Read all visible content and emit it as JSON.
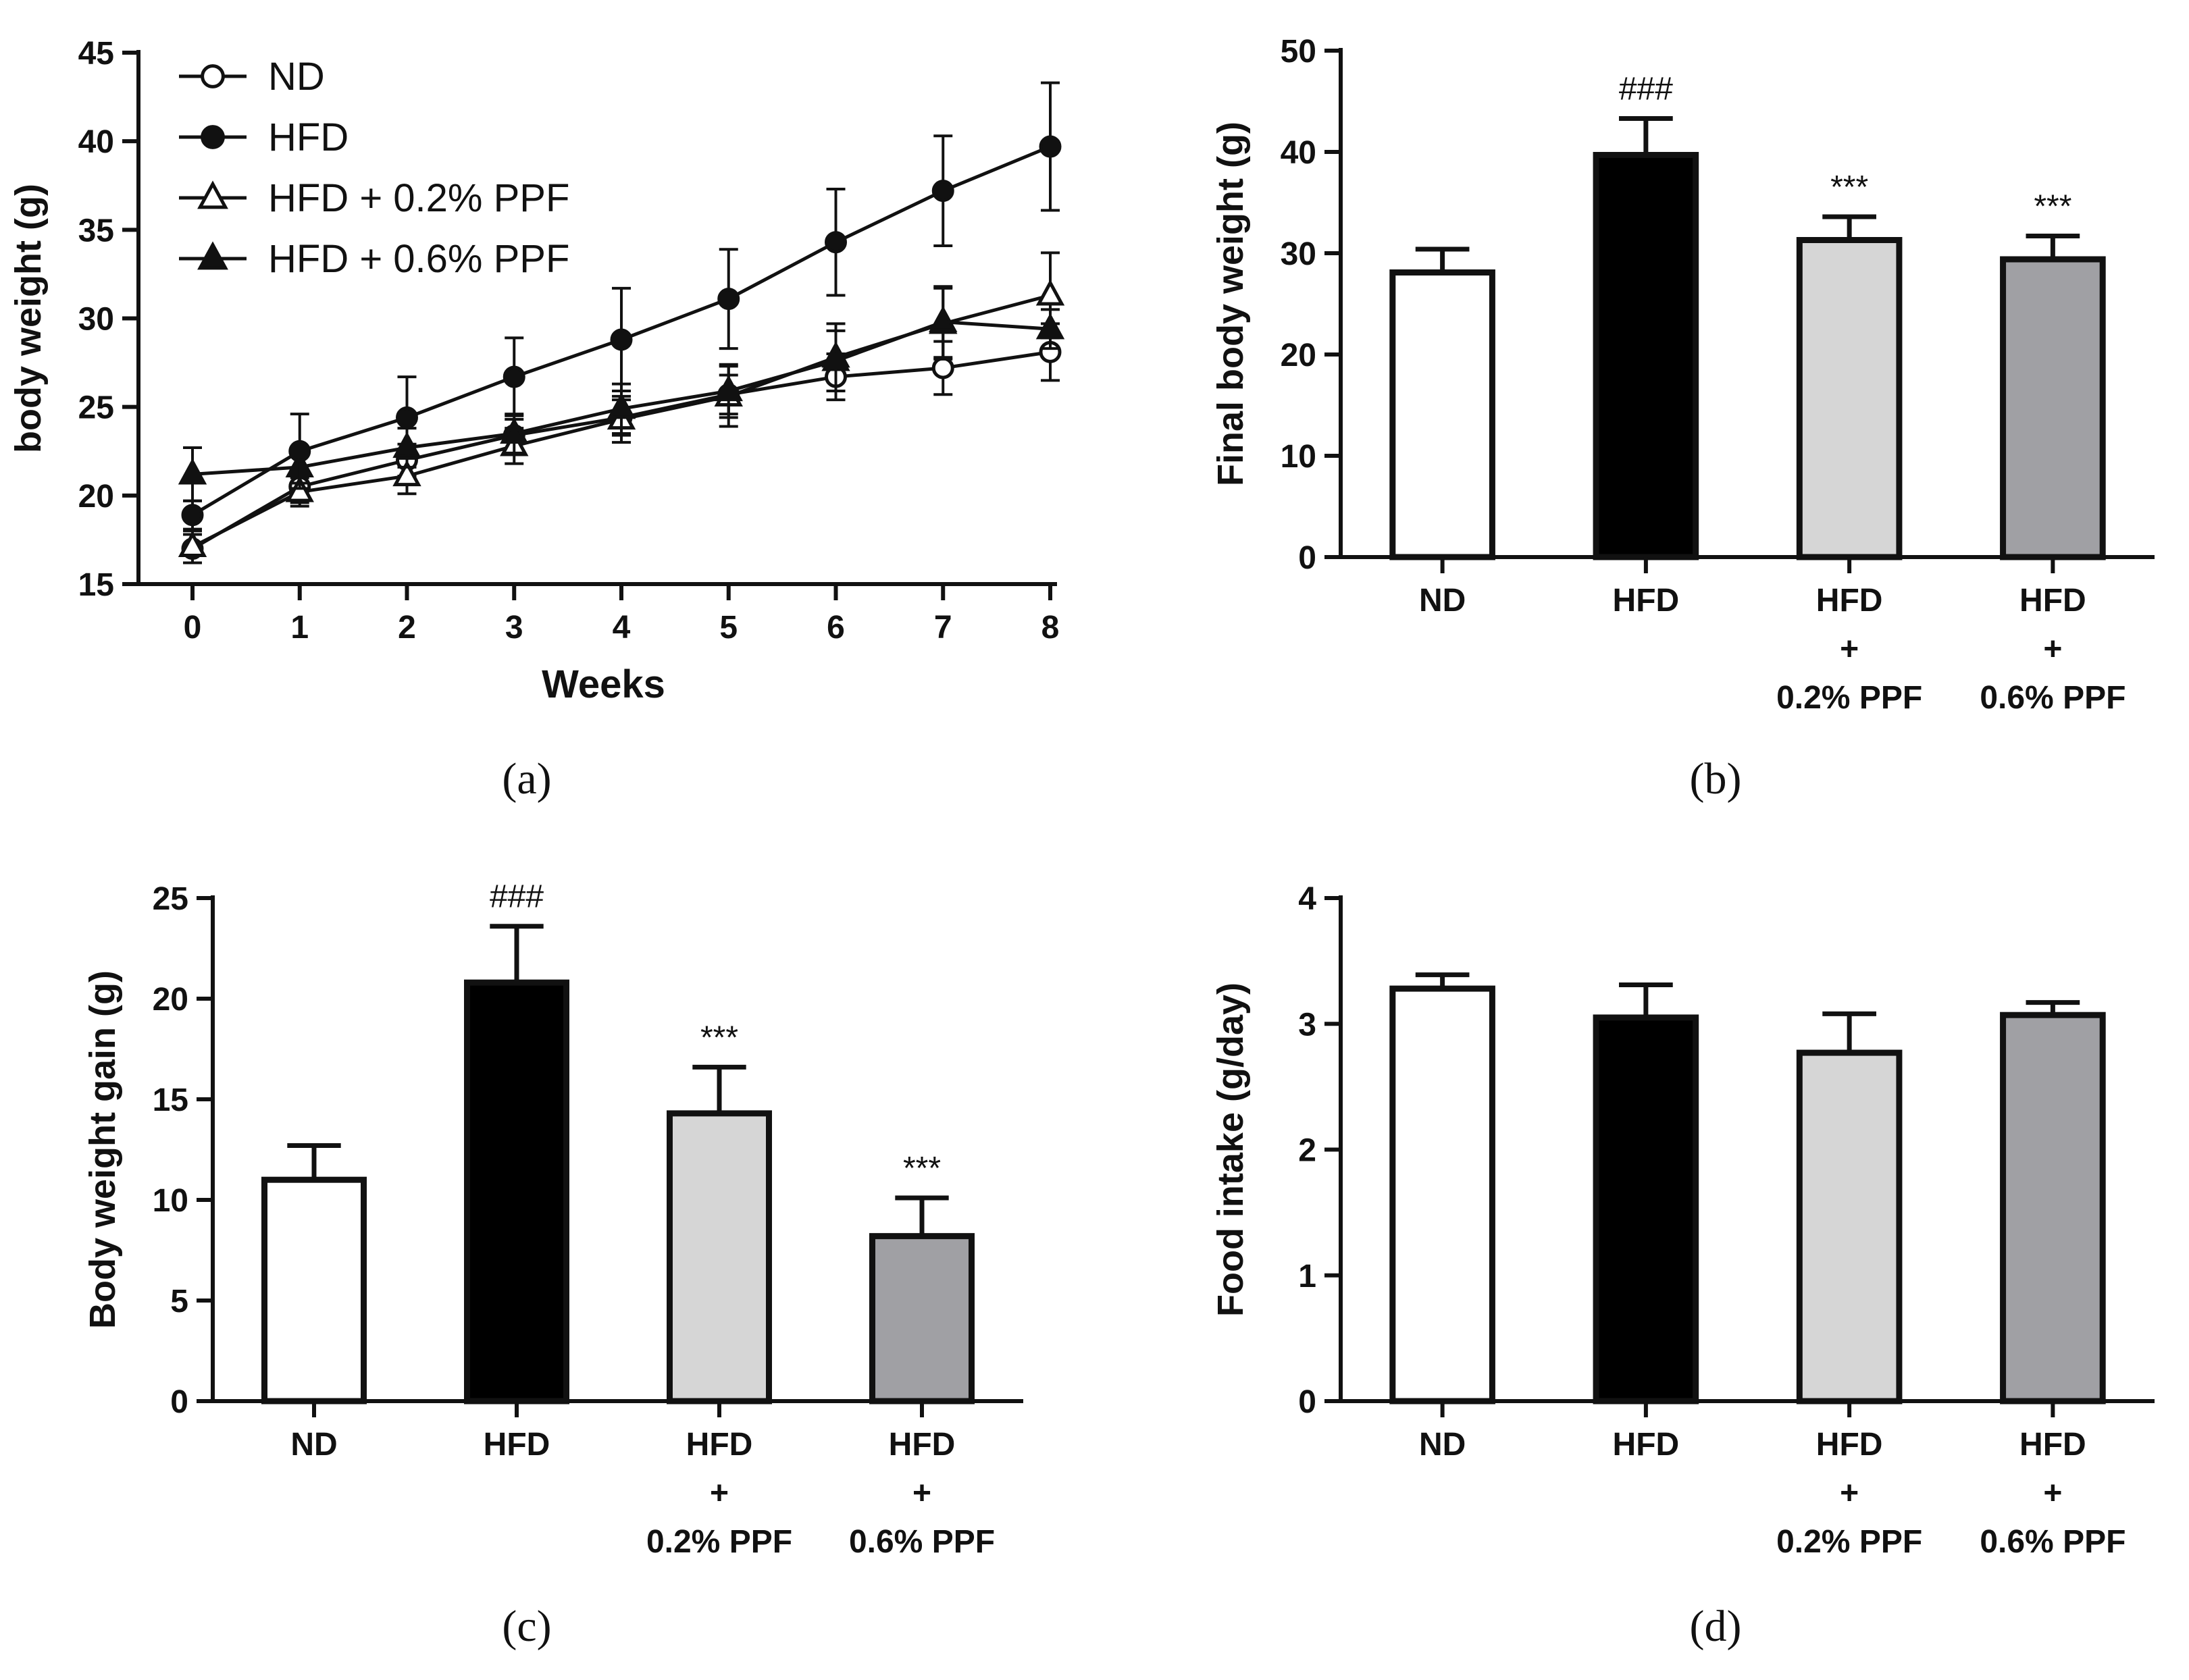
{
  "chart_data": [
    {
      "panel": "(a)",
      "type": "line",
      "xlabel": "Weeks",
      "ylabel": "body weight (g)",
      "x": [
        0,
        1,
        2,
        3,
        4,
        5,
        6,
        7,
        8
      ],
      "x_ticks": [
        "0",
        "1",
        "2",
        "3",
        "4",
        "5",
        "6",
        "7",
        "8"
      ],
      "ylim": [
        15,
        45
      ],
      "y_ticks": [
        "15",
        "20",
        "25",
        "30",
        "35",
        "40",
        "45"
      ],
      "legend_position": "top-left",
      "series": [
        {
          "name": "ND",
          "marker": "circle-open",
          "values": [
            17.0,
            20.5,
            22.0,
            23.4,
            24.4,
            25.7,
            26.7,
            27.2,
            28.1
          ],
          "errors": [
            0.8,
            0.9,
            0.9,
            0.9,
            1.0,
            1.1,
            1.3,
            1.5,
            1.6
          ]
        },
        {
          "name": "HFD",
          "marker": "circle-filled",
          "values": [
            18.9,
            22.5,
            24.4,
            26.7,
            28.8,
            31.1,
            34.3,
            37.2,
            39.7
          ],
          "errors": [
            0.8,
            2.1,
            2.3,
            2.2,
            2.9,
            2.8,
            3.0,
            3.1,
            3.6
          ]
        },
        {
          "name": "HFD + 0.2% PPF",
          "marker": "triangle-open",
          "values": [
            17.1,
            20.2,
            21.1,
            22.8,
            24.3,
            25.6,
            27.8,
            29.7,
            31.3
          ],
          "errors": [
            0.9,
            0.8,
            1.0,
            1.0,
            1.3,
            1.7,
            1.9,
            2.0,
            2.4
          ]
        },
        {
          "name": "HFD + 0.6% PPF",
          "marker": "triangle-filled",
          "values": [
            21.2,
            21.6,
            22.7,
            23.5,
            24.9,
            25.9,
            27.6,
            29.8,
            29.4
          ],
          "errors": [
            1.5,
            0.9,
            1.1,
            1.1,
            1.4,
            1.5,
            1.7,
            2.0,
            1.1
          ]
        }
      ]
    },
    {
      "panel": "(b)",
      "type": "bar",
      "ylabel": "Final body weight (g)",
      "categories": [
        [
          "ND"
        ],
        [
          "HFD"
        ],
        [
          "HFD",
          "+",
          "0.2% PPF"
        ],
        [
          "HFD",
          "+",
          "0.6% PPF"
        ]
      ],
      "values": [
        28.1,
        39.7,
        31.3,
        29.4
      ],
      "errors": [
        2.3,
        3.6,
        2.3,
        2.3
      ],
      "annotations": [
        "",
        "###",
        "***",
        "***"
      ],
      "colors": [
        "#ffffff",
        "#000000",
        "#d6d6d6",
        "#a0a0a4"
      ],
      "ylim": [
        0,
        50
      ],
      "y_ticks": [
        "0",
        "10",
        "20",
        "30",
        "40",
        "50"
      ]
    },
    {
      "panel": "(c)",
      "type": "bar",
      "ylabel": "Body weight gain (g)",
      "categories": [
        [
          "ND"
        ],
        [
          "HFD"
        ],
        [
          "HFD",
          "+",
          "0.2% PPF"
        ],
        [
          "HFD",
          "+",
          "0.6% PPF"
        ]
      ],
      "values": [
        11.0,
        20.8,
        14.3,
        8.2
      ],
      "errors": [
        1.7,
        2.8,
        2.3,
        1.9
      ],
      "annotations": [
        "",
        "###",
        "***",
        "***"
      ],
      "colors": [
        "#ffffff",
        "#000000",
        "#d6d6d6",
        "#a0a0a4"
      ],
      "ylim": [
        0,
        25
      ],
      "y_ticks": [
        "0",
        "5",
        "10",
        "15",
        "20",
        "25"
      ]
    },
    {
      "panel": "(d)",
      "type": "bar",
      "ylabel": "Food intake (g/day)",
      "categories": [
        [
          "ND"
        ],
        [
          "HFD"
        ],
        [
          "HFD",
          "+",
          "0.2% PPF"
        ],
        [
          "HFD",
          "+",
          "0.6% PPF"
        ]
      ],
      "values": [
        3.28,
        3.05,
        2.77,
        3.07
      ],
      "errors": [
        0.11,
        0.26,
        0.31,
        0.1
      ],
      "annotations": [
        "",
        "",
        "",
        ""
      ],
      "colors": [
        "#ffffff",
        "#000000",
        "#d6d6d6",
        "#a0a0a4"
      ],
      "ylim": [
        0,
        4
      ],
      "y_ticks": [
        "0",
        "1",
        "2",
        "3",
        "4"
      ]
    }
  ]
}
